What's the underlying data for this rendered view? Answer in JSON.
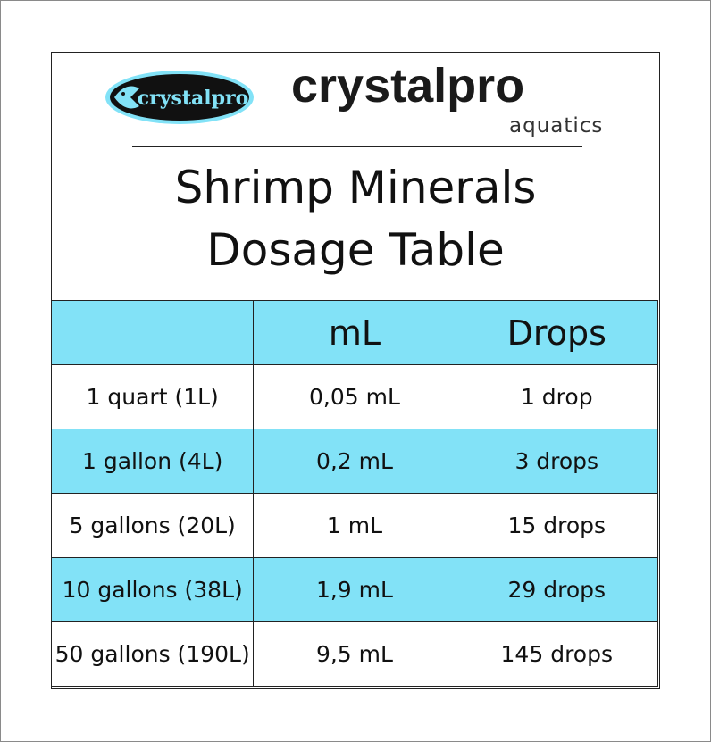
{
  "brand": {
    "logo_text": "crystalpro",
    "name": "crystalpro",
    "sub": "aquatics"
  },
  "title": {
    "line1": "Shrimp Minerals",
    "line2": "Dosage Table"
  },
  "colors": {
    "accent": "#82e2f7",
    "logo_bg": "#111111"
  },
  "table": {
    "headers": [
      "",
      "mL",
      "Drops"
    ],
    "rows": [
      [
        "1 quart (1L)",
        "0,05 mL",
        "1 drop"
      ],
      [
        "1 gallon  (4L)",
        "0,2 mL",
        "3 drops"
      ],
      [
        "5 gallons (20L)",
        "1 mL",
        "15 drops"
      ],
      [
        "10 gallons (38L)",
        "1,9 mL",
        "29 drops"
      ],
      [
        "50 gallons (190L)",
        "9,5 mL",
        "145 drops"
      ]
    ]
  }
}
